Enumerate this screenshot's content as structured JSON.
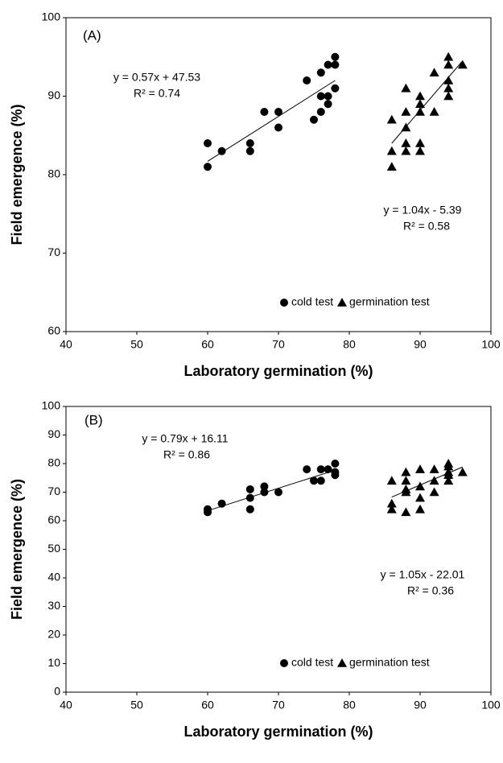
{
  "chart_data": [
    {
      "type": "scatter",
      "annotations": [
        "(A)",
        "y = 0.57x + 47.53",
        "R² = 0.74",
        "y = 1.04x - 5.39",
        "R² = 0.58"
      ],
      "x_label": "Laboratory germination (%)",
      "y_label": "Field emergence (%)",
      "xlim": [
        40,
        100
      ],
      "xticks": [
        40,
        50,
        60,
        70,
        80,
        90,
        100
      ],
      "ylim": [
        60,
        100
      ],
      "yticks": [
        60,
        70,
        80,
        90,
        100
      ],
      "legend": "lower right",
      "series": [
        {
          "name": "cold test",
          "marker": "circle",
          "color": "#000000",
          "x": [
            60,
            60,
            62,
            66,
            66,
            68,
            70,
            70,
            74,
            75,
            76,
            76,
            76,
            77,
            77,
            77,
            78,
            78,
            78
          ],
          "values": [
            84,
            81,
            83,
            84,
            83,
            88,
            88,
            86,
            92,
            87,
            93,
            90,
            88,
            94,
            90,
            89,
            95,
            94,
            91
          ],
          "trend_x": [
            60,
            78
          ],
          "trend_values": [
            81.7,
            92.0
          ]
        },
        {
          "name": "germination test",
          "marker": "triangle",
          "color": "#000000",
          "x": [
            86,
            86,
            86,
            88,
            88,
            88,
            88,
            88,
            90,
            90,
            90,
            90,
            90,
            92,
            92,
            94,
            94,
            94,
            94,
            94,
            96
          ],
          "values": [
            87,
            83,
            81,
            91,
            88,
            86,
            84,
            83,
            90,
            89,
            88,
            84,
            83,
            93,
            88,
            95,
            94,
            92,
            91,
            90,
            94
          ],
          "trend_x": [
            86,
            96
          ],
          "trend_values": [
            84.0,
            94.5
          ]
        }
      ]
    },
    {
      "type": "scatter",
      "annotations": [
        "(B)",
        "y = 0.79x + 16.11",
        "R² = 0.86",
        "y = 1.05x - 22.01",
        "R² = 0.36"
      ],
      "x_label": "Laboratory germination (%)",
      "y_label": "Field emergence (%)",
      "xlim": [
        40,
        100
      ],
      "xticks": [
        40,
        50,
        60,
        70,
        80,
        90,
        100
      ],
      "ylim": [
        0,
        100
      ],
      "yticks": [
        0,
        10,
        20,
        30,
        40,
        50,
        60,
        70,
        80,
        90,
        100
      ],
      "legend": "lower right",
      "series": [
        {
          "name": "cold test",
          "marker": "circle",
          "color": "#000000",
          "x": [
            60,
            60,
            62,
            66,
            66,
            66,
            68,
            68,
            70,
            74,
            75,
            76,
            76,
            77,
            78,
            78,
            78
          ],
          "values": [
            64,
            63,
            66,
            71,
            68,
            64,
            72,
            70,
            70,
            78,
            74,
            78,
            74,
            78,
            80,
            77,
            76
          ],
          "trend_x": [
            60,
            78
          ],
          "trend_values": [
            63.5,
            77.7
          ]
        },
        {
          "name": "germination test",
          "marker": "triangle",
          "color": "#000000",
          "x": [
            86,
            86,
            86,
            88,
            88,
            88,
            88,
            88,
            90,
            90,
            90,
            90,
            92,
            92,
            92,
            94,
            94,
            94,
            94,
            94,
            96
          ],
          "values": [
            74,
            66,
            64,
            77,
            74,
            71,
            70,
            63,
            78,
            72,
            68,
            64,
            78,
            74,
            70,
            80,
            79,
            77,
            76,
            74,
            77
          ],
          "trend_x": [
            86,
            96
          ],
          "trend_values": [
            68.3,
            78.8
          ]
        }
      ]
    }
  ]
}
